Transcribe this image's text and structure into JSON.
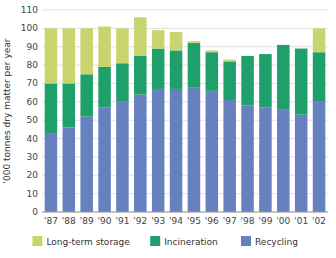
{
  "chart_data": {
    "type": "bar",
    "stacked": true,
    "ylabel": "'000 tonnes dry matter per year",
    "categories": [
      "'87",
      "'88",
      "'89",
      "'90",
      "'91",
      "'92",
      "'93",
      "'94",
      "'95",
      "'96",
      "'97",
      "'98",
      "'99",
      "'00",
      "'01",
      "'02"
    ],
    "series": [
      {
        "name": "Recycling",
        "color": "#6680c0",
        "values": [
          43,
          46,
          52,
          57,
          60,
          64,
          67,
          67,
          68,
          66,
          61,
          58,
          57,
          56,
          53,
          60
        ]
      },
      {
        "name": "Incineration",
        "color": "#1fa06a",
        "values": [
          27,
          24,
          23,
          22,
          21,
          21,
          22,
          21,
          24,
          21,
          21,
          27,
          29,
          35,
          36,
          27
        ]
      },
      {
        "name": "Long-term storage",
        "color": "#c8d46e",
        "values": [
          30,
          30,
          25,
          22,
          19,
          21,
          10,
          10,
          1,
          1,
          1,
          0,
          0,
          0,
          0,
          13
        ]
      }
    ],
    "ylim": [
      0,
      110
    ],
    "yticks": [
      0,
      10,
      20,
      30,
      40,
      50,
      60,
      70,
      80,
      90,
      100,
      110
    ],
    "grid": true,
    "legend": "bottom"
  }
}
